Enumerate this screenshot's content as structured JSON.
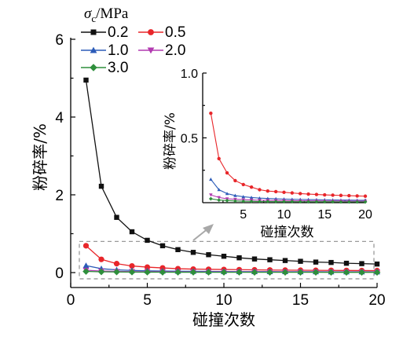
{
  "chart_data": {
    "type": "line",
    "main": {
      "xlabel": "碰撞次数",
      "ylabel": "粉碎率/%",
      "xlim": [
        0,
        20
      ],
      "ylim": [
        0,
        6
      ],
      "xticks": [
        0,
        5,
        10,
        15,
        20
      ],
      "yticks": [
        0,
        2,
        4,
        6
      ]
    },
    "inset": {
      "xlabel": "碰撞次数",
      "ylabel": "粉碎率/%",
      "xlim": [
        0,
        20
      ],
      "ylim": [
        0,
        1.0
      ],
      "xticks": [
        5,
        10,
        15,
        20
      ],
      "yticks": [
        0.5,
        1.0
      ],
      "ytick_labels": [
        "0.5",
        "1.0"
      ]
    },
    "legend": {
      "title_symbol": "σ",
      "title_subscript": "c",
      "title_unit": "/MPa",
      "placement": "top-left"
    },
    "x": [
      1,
      2,
      3,
      4,
      5,
      6,
      7,
      8,
      9,
      10,
      11,
      12,
      13,
      14,
      15,
      16,
      17,
      18,
      19,
      20
    ],
    "series": [
      {
        "name": "0.2",
        "color": "#111111",
        "marker": "square",
        "values": [
          4.95,
          2.22,
          1.42,
          1.05,
          0.83,
          0.69,
          0.59,
          0.52,
          0.46,
          0.42,
          0.38,
          0.35,
          0.33,
          0.31,
          0.29,
          0.27,
          0.26,
          0.24,
          0.23,
          0.22
        ]
      },
      {
        "name": "0.5",
        "color": "#e8262a",
        "marker": "circle",
        "values": [
          0.69,
          0.34,
          0.23,
          0.17,
          0.14,
          0.12,
          0.1,
          0.09,
          0.085,
          0.08,
          0.075,
          0.07,
          0.066,
          0.063,
          0.06,
          0.058,
          0.056,
          0.054,
          0.052,
          0.05
        ]
      },
      {
        "name": "1.0",
        "color": "#2b5bb8",
        "marker": "triangle-up",
        "values": [
          0.18,
          0.1,
          0.07,
          0.055,
          0.046,
          0.04,
          0.035,
          0.032,
          0.03,
          0.028,
          0.026,
          0.025,
          0.024,
          0.023,
          0.022,
          0.021,
          0.02,
          0.02,
          0.019,
          0.019
        ]
      },
      {
        "name": "2.0",
        "color": "#b23ab0",
        "marker": "triangle-down",
        "values": [
          0.06,
          0.04,
          0.03,
          0.026,
          0.023,
          0.021,
          0.019,
          0.018,
          0.017,
          0.016,
          0.015,
          0.015,
          0.014,
          0.014,
          0.013,
          0.013,
          0.013,
          0.012,
          0.012,
          0.012
        ]
      },
      {
        "name": "3.0",
        "color": "#2f8f3c",
        "marker": "diamond",
        "values": [
          0.03,
          0.02,
          0.016,
          0.013,
          0.011,
          0.01,
          0.009,
          0.009,
          0.008,
          0.008,
          0.008,
          0.007,
          0.007,
          0.007,
          0.007,
          0.007,
          0.006,
          0.006,
          0.006,
          0.006
        ]
      }
    ]
  }
}
